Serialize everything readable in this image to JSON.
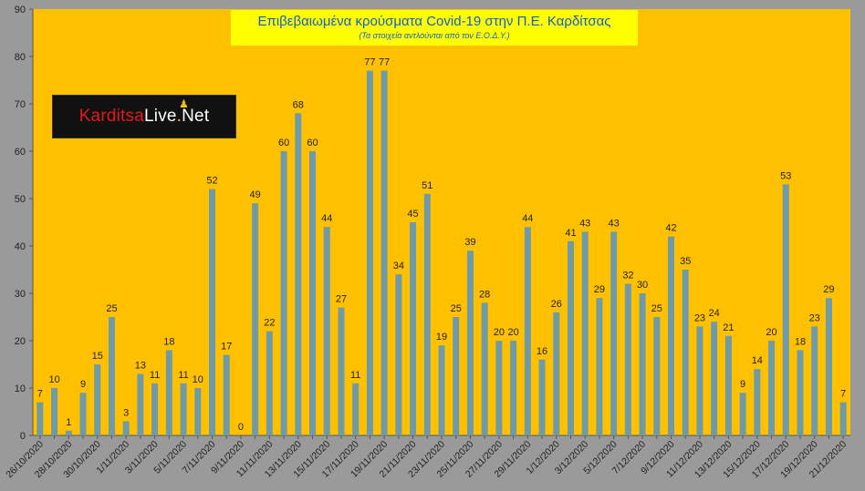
{
  "title": "Επιβεβαιωμένα κρούσματα Covid-19 στην Π.Ε. Καρδίτσας",
  "subtitle": "(Τα στοιχεία αντλούνται από τον Ε.Ο.Δ.Υ.)",
  "logo": {
    "text_a": "Karditsa",
    "text_b": "Live",
    "text_c": ".",
    "text_d": "Net"
  },
  "colors": {
    "background": "#ffc000",
    "bar": "#6f9aa8",
    "frame": "#9a9a9a",
    "title_bg": "#ffff00",
    "title_text": "#1060c8"
  },
  "chart_data": {
    "type": "bar",
    "title": "Επιβεβαιωμένα κρούσματα Covid-19 στην Π.Ε. Καρδίτσας",
    "subtitle": "(Τα στοιχεία αντλούνται από τον Ε.Ο.Δ.Υ.)",
    "xlabel": "",
    "ylabel": "",
    "ylim": [
      0,
      90
    ],
    "yticks": [
      0,
      10,
      20,
      30,
      40,
      50,
      60,
      70,
      80,
      90
    ],
    "grid": false,
    "data_labels": true,
    "categories": [
      "26/10/2020",
      "27/10/2020",
      "28/10/2020",
      "29/10/2020",
      "30/10/2020",
      "31/10/2020",
      "1/11/2020",
      "2/11/2020",
      "3/11/2020",
      "4/11/2020",
      "5/11/2020",
      "6/11/2020",
      "7/11/2020",
      "8/11/2020",
      "9/11/2020",
      "10/11/2020",
      "11/11/2020",
      "12/11/2020",
      "13/11/2020",
      "14/11/2020",
      "15/11/2020",
      "16/11/2020",
      "17/11/2020",
      "18/11/2020",
      "19/11/2020",
      "20/11/2020",
      "21/11/2020",
      "22/11/2020",
      "23/11/2020",
      "24/11/2020",
      "25/11/2020",
      "26/11/2020",
      "27/11/2020",
      "28/11/2020",
      "29/11/2020",
      "30/11/2020",
      "1/12/2020",
      "2/12/2020",
      "3/12/2020",
      "4/12/2020",
      "5/12/2020",
      "6/12/2020",
      "7/12/2020",
      "8/12/2020",
      "9/12/2020",
      "10/12/2020",
      "11/12/2020",
      "12/12/2020",
      "13/12/2020",
      "14/12/2020",
      "15/12/2020",
      "16/12/2020",
      "17/12/2020",
      "18/12/2020",
      "19/12/2020",
      "20/12/2020",
      "21/12/2020"
    ],
    "tick_labels_shown": [
      "26/10/2020",
      "28/10/2020",
      "30/10/2020",
      "1/11/2020",
      "3/11/2020",
      "5/11/2020",
      "7/11/2020",
      "9/11/2020",
      "11/11/2020",
      "13/11/2020",
      "15/11/2020",
      "17/11/2020",
      "19/11/2020",
      "21/11/2020",
      "23/11/2020",
      "25/11/2020",
      "27/11/2020",
      "29/11/2020",
      "1/12/2020",
      "3/12/2020",
      "5/12/2020",
      "7/12/2020",
      "9/12/2020",
      "11/12/2020",
      "13/12/2020",
      "15/12/2020",
      "17/12/2020",
      "19/12/2020",
      "21/12/2020"
    ],
    "values": [
      7,
      10,
      1,
      9,
      15,
      25,
      3,
      13,
      11,
      18,
      11,
      10,
      52,
      17,
      0,
      49,
      22,
      60,
      68,
      60,
      44,
      27,
      11,
      77,
      77,
      34,
      45,
      51,
      19,
      25,
      39,
      28,
      20,
      20,
      44,
      16,
      26,
      41,
      43,
      29,
      43,
      32,
      30,
      25,
      42,
      35,
      23,
      24,
      21,
      9,
      14,
      20,
      53,
      18,
      23,
      29,
      7
    ]
  }
}
